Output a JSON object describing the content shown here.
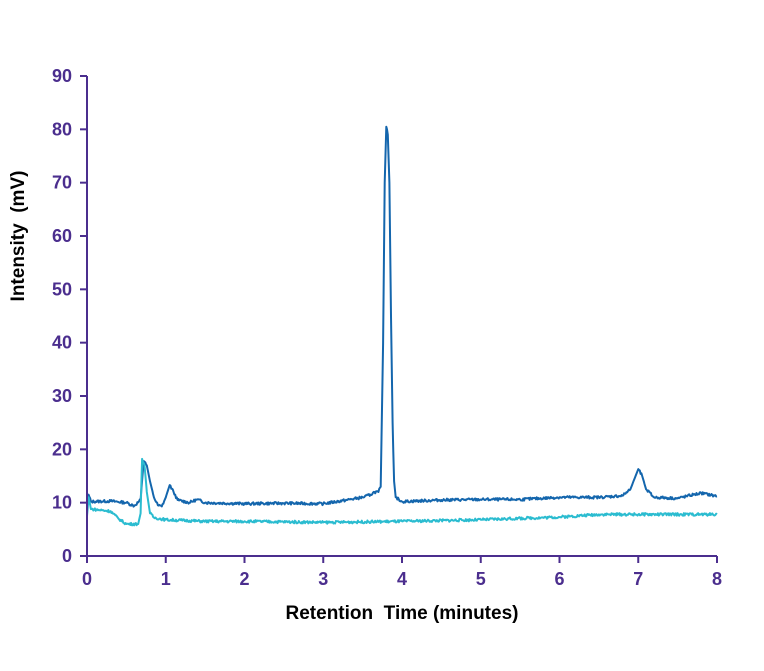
{
  "chart_data": {
    "type": "line",
    "title": "",
    "xlabel": "Retention  Time (minutes)",
    "ylabel": "Intensity  (mV)",
    "xlim": [
      0,
      8
    ],
    "ylim": [
      0,
      90
    ],
    "xticks": [
      "0",
      "1",
      "2",
      "3",
      "4",
      "5",
      "6",
      "7",
      "8"
    ],
    "yticks": [
      "0",
      "10",
      "20",
      "30",
      "40",
      "50",
      "60",
      "70",
      "80",
      "90"
    ],
    "grid": false,
    "axis_color": "#4b2e8e",
    "series": [
      {
        "color": "#1466ad",
        "x": [
          0,
          0.02,
          0.05,
          0.3,
          0.5,
          0.6,
          0.68,
          0.72,
          0.76,
          0.8,
          0.85,
          0.9,
          0.95,
          1.0,
          1.05,
          1.1,
          1.15,
          1.3,
          1.4,
          1.5,
          2.0,
          2.5,
          3.0,
          3.3,
          3.5,
          3.6,
          3.65,
          3.7,
          3.73,
          3.76,
          3.78,
          3.8,
          3.82,
          3.84,
          3.86,
          3.88,
          3.9,
          3.92,
          4.0,
          4.5,
          5.0,
          5.5,
          6.0,
          6.5,
          6.8,
          6.9,
          7.0,
          7.05,
          7.1,
          7.2,
          7.5,
          7.7,
          7.8,
          8.0
        ],
        "y": [
          10.5,
          11.5,
          10.2,
          10.3,
          10,
          9.4,
          10.5,
          17.8,
          17,
          14,
          11,
          9.5,
          9.3,
          11,
          13.3,
          12,
          10.5,
          10,
          10.6,
          10,
          9.8,
          9.9,
          9.8,
          10.5,
          11,
          11.5,
          12,
          12,
          13,
          40,
          70,
          80.5,
          79,
          70,
          45,
          25,
          14,
          11,
          10.2,
          10.5,
          10.6,
          10.6,
          11,
          11,
          11.3,
          12.5,
          16.3,
          15,
          12.5,
          11,
          10.8,
          11.5,
          11.8,
          11.2
        ]
      },
      {
        "color": "#2bbcd0",
        "x": [
          0,
          0.02,
          0.05,
          0.3,
          0.4,
          0.5,
          0.65,
          0.68,
          0.7,
          0.73,
          0.76,
          0.8,
          0.85,
          1.0,
          1.5,
          2.0,
          3.0,
          4.0,
          5.0,
          6.0,
          6.5,
          7.0,
          8.0
        ],
        "y": [
          7.5,
          11,
          8.8,
          8.4,
          7,
          6,
          6,
          8,
          18.2,
          17,
          12,
          8,
          7.2,
          6.8,
          6.5,
          6.5,
          6.3,
          6.5,
          6.8,
          7.3,
          7.8,
          7.8,
          7.8
        ]
      }
    ]
  }
}
